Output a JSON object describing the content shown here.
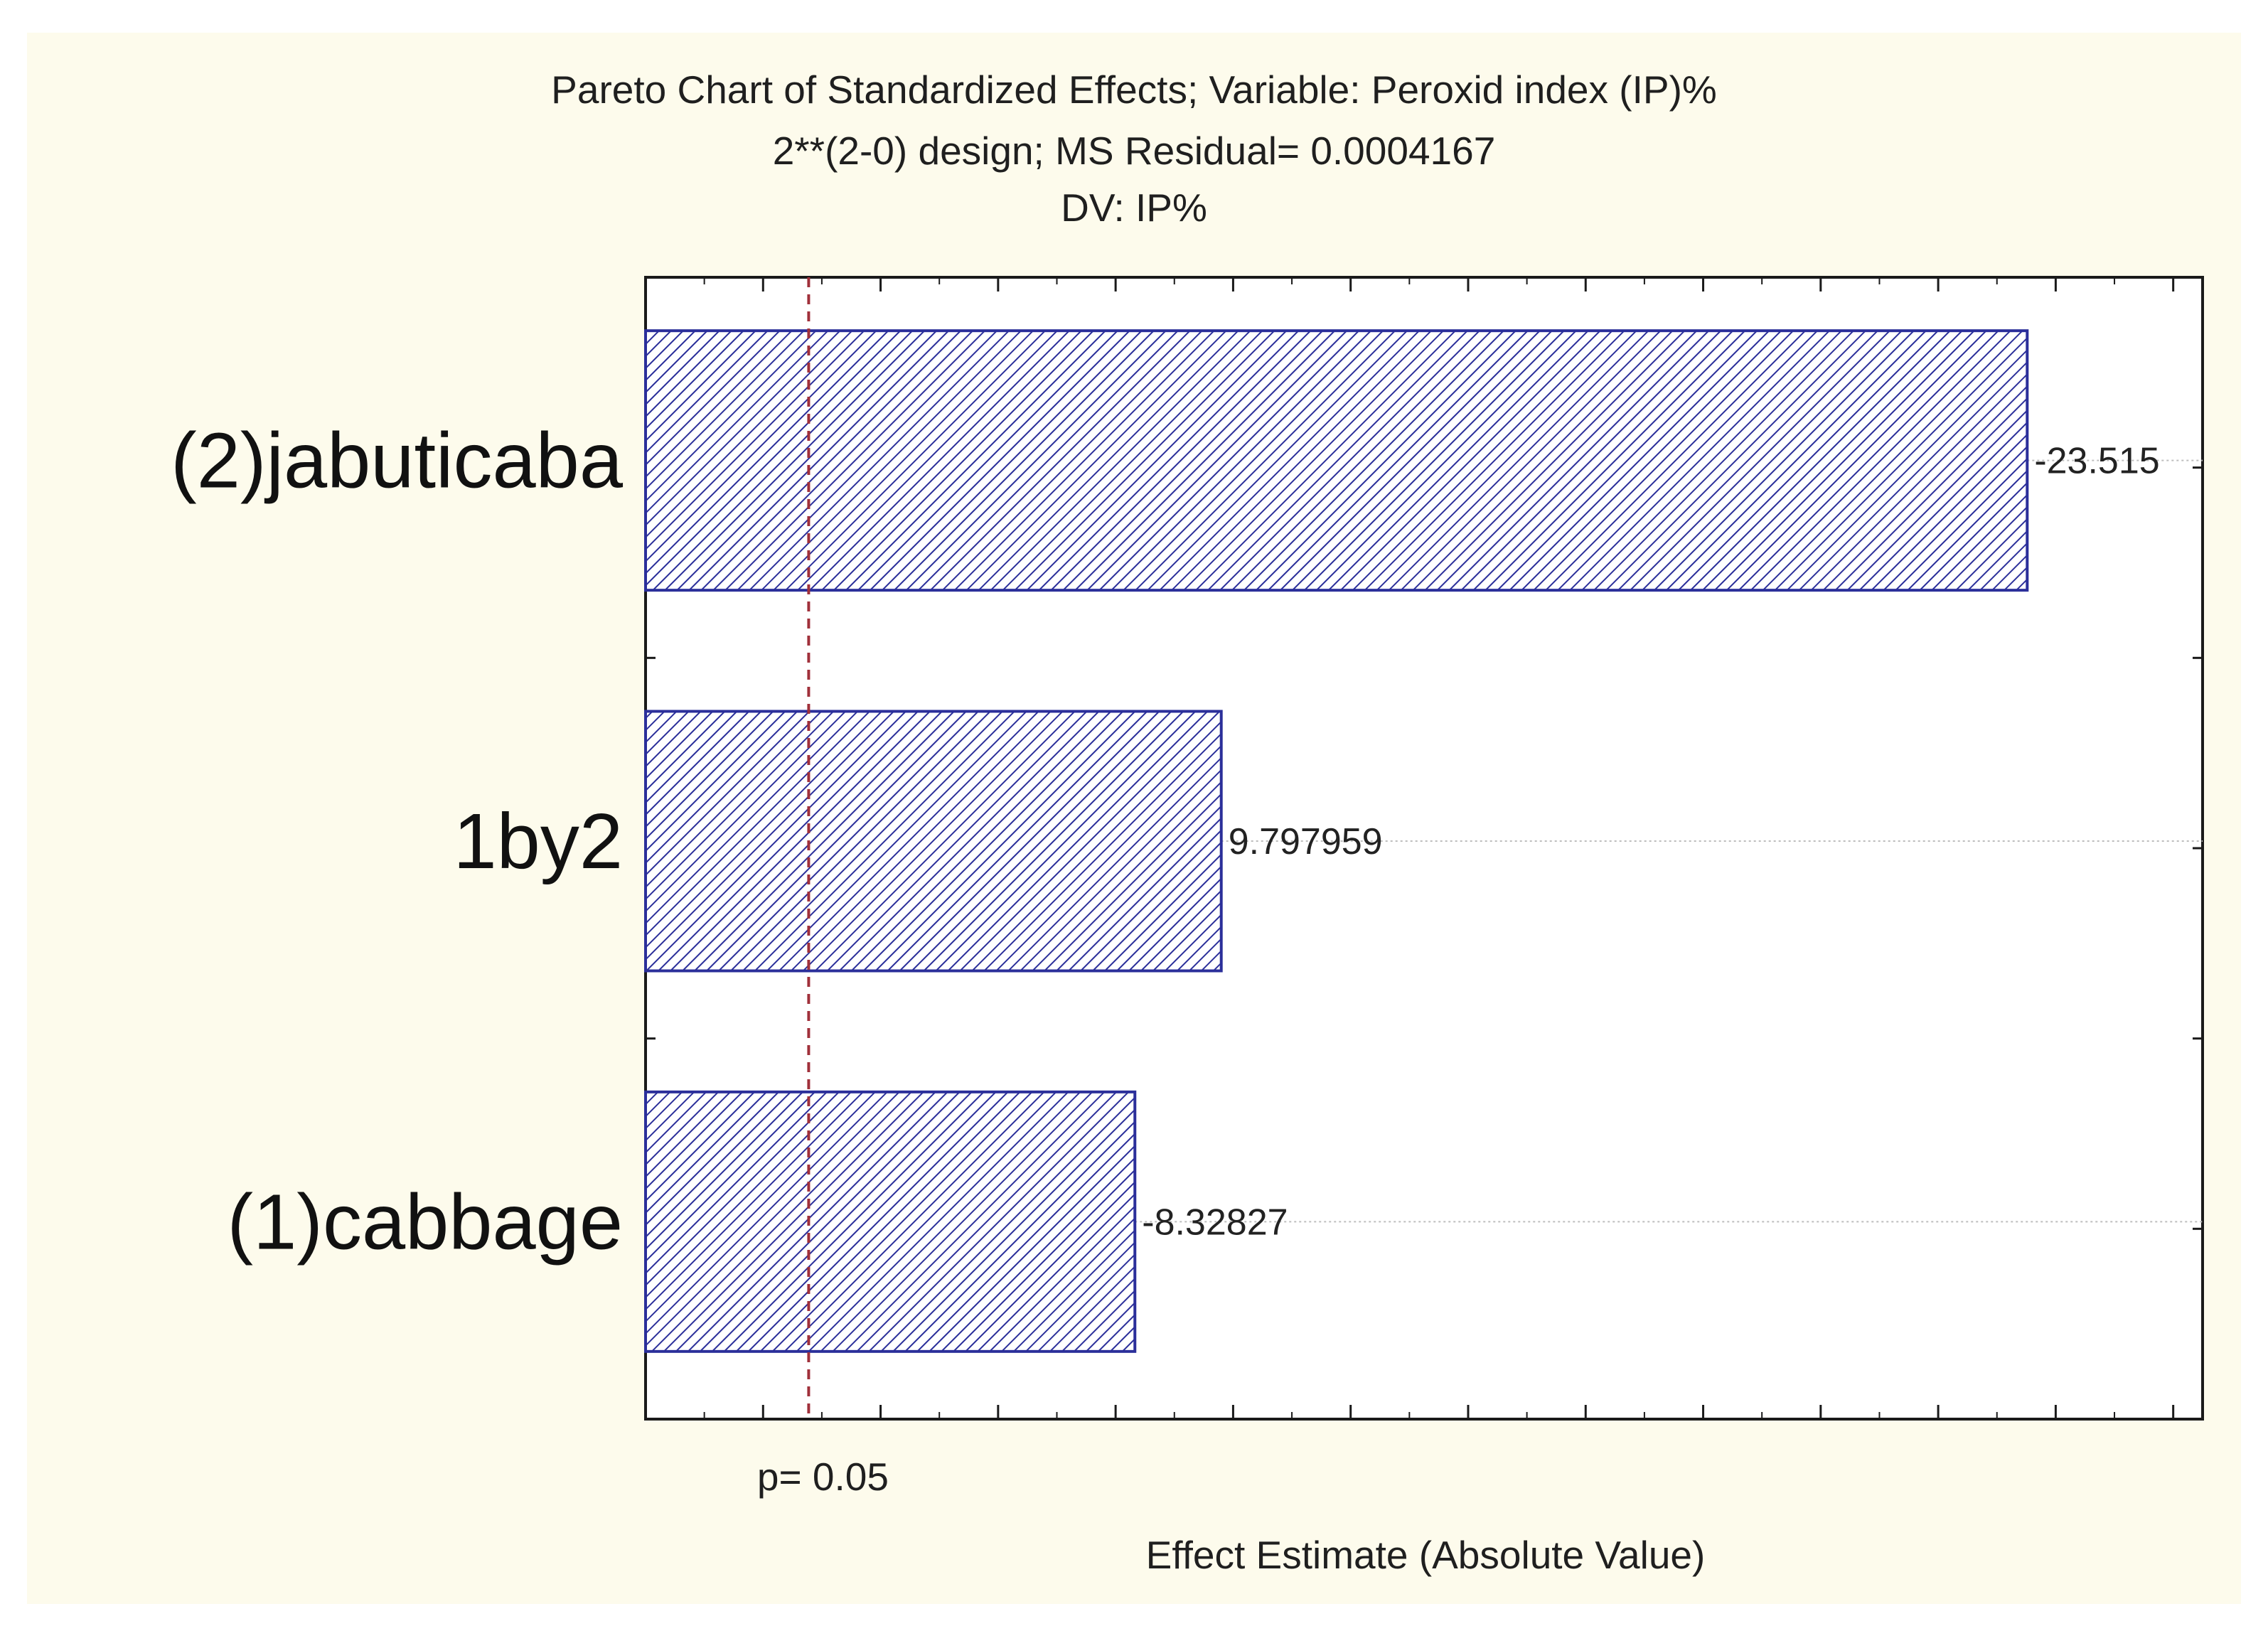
{
  "figure": {
    "title": "Pareto Chart of Standardized Effects; Variable: Peroxid index (IP)%",
    "subtitle_design": "2**(2-0) design; MS Residual= 0.0004167",
    "subtitle_dv": "DV: IP%",
    "xlabel": "Effect Estimate (Absolute Value)",
    "reference_label": "p= 0.05"
  },
  "colors": {
    "bar_stroke": "#2b2f9a",
    "hatch": "#2b2f9a",
    "reference_line": "#a0303a",
    "background": "#fdfbec",
    "plot_bg": "#ffffff"
  },
  "chart_data": {
    "type": "bar",
    "orientation": "horizontal",
    "title": "Pareto Chart of Standardized Effects; Variable: Peroxid index (IP)%",
    "xlabel": "Effect Estimate (Absolute Value)",
    "ylabel": "",
    "categories": [
      "(2)jabuticaba",
      "1by2",
      "(1)cabbage"
    ],
    "values": [
      23.515,
      9.797959,
      8.32827
    ],
    "value_labels": [
      "-23.515",
      "9.797959",
      "-8.32827"
    ],
    "xlim": [
      0,
      26.5
    ],
    "reference_line": {
      "value": 2.776,
      "label": "p= 0.05"
    },
    "major_ticks": [
      2,
      4,
      6,
      8,
      10,
      12,
      14,
      16,
      18,
      20,
      22,
      24,
      26
    ],
    "grid": false
  }
}
